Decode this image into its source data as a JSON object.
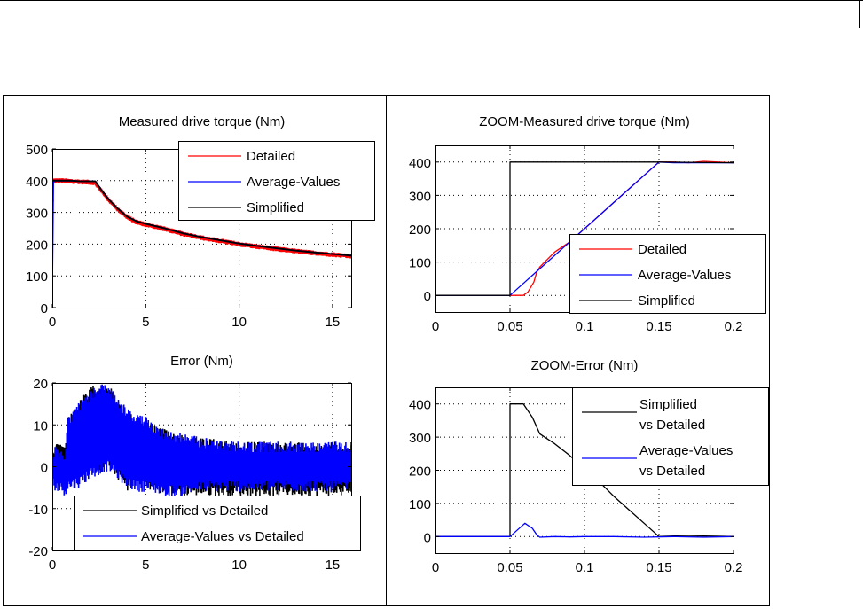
{
  "figure": {
    "colors": {
      "detailed": "#ff0000",
      "average": "#0000ff",
      "simplified": "#000000",
      "grid": "#000000",
      "background": "#ffffff"
    }
  },
  "chart_data": [
    {
      "type": "line",
      "title": "Measured drive torque (Nm)",
      "xlabel": "",
      "ylabel": "",
      "xlim": [
        0,
        16
      ],
      "ylim": [
        0,
        500
      ],
      "xticks": [
        0,
        5,
        10,
        15
      ],
      "yticks": [
        0,
        100,
        200,
        300,
        400,
        500
      ],
      "xtick_labels": [
        "0",
        "5",
        "10",
        "15"
      ],
      "ytick_labels": [
        "0",
        "100",
        "200",
        "300",
        "400",
        "500"
      ],
      "grid": true,
      "legend": {
        "position": "top-right",
        "entries": [
          "Detailed",
          "Average-Values",
          "Simplified"
        ]
      },
      "series": [
        {
          "name": "Detailed",
          "color": "#ff0000",
          "noisy": true,
          "x": [
            0,
            0.05,
            0.1,
            0.5,
            1,
            1.5,
            2,
            2.3,
            2.6,
            3,
            3.5,
            4,
            4.5,
            5,
            6,
            7,
            8,
            9,
            10,
            11,
            12,
            13,
            14,
            15,
            16
          ],
          "y": [
            90,
            400,
            400,
            400,
            398,
            396,
            395,
            393,
            370,
            340,
            310,
            285,
            270,
            262,
            248,
            232,
            220,
            210,
            200,
            192,
            185,
            178,
            172,
            167,
            162
          ]
        },
        {
          "name": "Average-Values",
          "color": "#0000ff",
          "noisy": false,
          "x": [
            0,
            0.05,
            0.1,
            0.5,
            1,
            1.5,
            2,
            2.3,
            2.6,
            3,
            3.5,
            4,
            4.5,
            5,
            6,
            7,
            8,
            9,
            10,
            11,
            12,
            13,
            14,
            15,
            16
          ],
          "y": [
            90,
            400,
            400,
            400,
            400,
            398,
            398,
            398,
            372,
            342,
            312,
            287,
            272,
            264,
            250,
            234,
            222,
            212,
            202,
            194,
            187,
            180,
            174,
            169,
            164
          ]
        },
        {
          "name": "Simplified",
          "color": "#000000",
          "noisy": false,
          "x": [
            0.05,
            0.1,
            0.5,
            1,
            1.5,
            2,
            2.3,
            2.6,
            3,
            3.5,
            4,
            4.5,
            5,
            6,
            7,
            8,
            9,
            10,
            11,
            12,
            13,
            14,
            15,
            16
          ],
          "y": [
            400,
            400,
            400,
            400,
            398,
            398,
            398,
            372,
            342,
            312,
            287,
            272,
            264,
            250,
            234,
            222,
            212,
            202,
            194,
            187,
            180,
            174,
            169,
            164
          ]
        }
      ]
    },
    {
      "type": "line",
      "title": "Error (Nm)",
      "xlabel": "",
      "ylabel": "",
      "xlim": [
        0,
        16
      ],
      "ylim": [
        -20,
        20
      ],
      "xticks": [
        0,
        5,
        10,
        15
      ],
      "yticks": [
        -20,
        -10,
        0,
        10,
        20
      ],
      "xtick_labels": [
        "0",
        "5",
        "10",
        "15"
      ],
      "ytick_labels": [
        "-20",
        "-10",
        "0",
        "10",
        "20"
      ],
      "grid": true,
      "legend": {
        "position": "bottom-right",
        "entries": [
          "Simplified vs Detailed",
          "Average-Values vs Detailed"
        ]
      },
      "series": [
        {
          "name": "Simplified vs Detailed",
          "color": "#000000",
          "kind": "band",
          "x": [
            0,
            0.2,
            0.7,
            0.8,
            1.5,
            2,
            2.5,
            3,
            3.5,
            4,
            4.5,
            5,
            6,
            7,
            8,
            10,
            12,
            14,
            16
          ],
          "upper": [
            4,
            5,
            4,
            12,
            16,
            19,
            20,
            20,
            16,
            13,
            12,
            11,
            9,
            8,
            7,
            6,
            6,
            6,
            6
          ],
          "lower": [
            -2,
            3,
            2,
            4,
            2,
            0,
            -1,
            0,
            -3,
            -6,
            -2,
            -5,
            -7,
            -7,
            -7,
            -7,
            -7,
            -7,
            -7
          ]
        },
        {
          "name": "Average-Values vs Detailed",
          "color": "#0000ff",
          "kind": "band",
          "x": [
            0,
            0.2,
            0.7,
            0.8,
            1.5,
            2,
            2.5,
            3,
            3.5,
            4,
            4.5,
            5,
            6,
            7,
            8,
            10,
            12,
            14,
            16
          ],
          "upper": [
            4,
            5,
            4,
            12,
            16,
            18,
            20,
            20,
            17,
            14,
            13,
            12,
            9,
            8,
            7,
            6,
            6,
            6,
            6
          ],
          "lower": [
            -5,
            -6,
            -7,
            -6,
            -5,
            -3,
            -2,
            -1,
            -3,
            -5,
            -6,
            -6,
            -7,
            -7,
            -6,
            -6,
            -6,
            -6,
            -6
          ]
        }
      ]
    },
    {
      "type": "line",
      "title": "ZOOM-Measured drive torque (Nm)",
      "xlabel": "",
      "ylabel": "",
      "xlim": [
        0,
        0.2
      ],
      "ylim": [
        -50,
        450
      ],
      "xticks": [
        0,
        0.05,
        0.1,
        0.15,
        0.2
      ],
      "yticks": [
        0,
        100,
        200,
        300,
        400
      ],
      "xtick_labels": [
        "0",
        "0.05",
        "0.1",
        "0.15",
        "0.2"
      ],
      "ytick_labels": [
        "0",
        "100",
        "200",
        "300",
        "400"
      ],
      "grid": true,
      "legend": {
        "position": "bottom-right",
        "entries": [
          "Detailed",
          "Average-Values",
          "Simplified"
        ]
      },
      "series": [
        {
          "name": "Detailed",
          "color": "#ff0000",
          "x": [
            0,
            0.05,
            0.052,
            0.059,
            0.062,
            0.066,
            0.068,
            0.07,
            0.08,
            0.09,
            0.1,
            0.11,
            0.12,
            0.13,
            0.14,
            0.15,
            0.16,
            0.17,
            0.18,
            0.2
          ],
          "y": [
            0,
            0,
            0,
            0,
            10,
            40,
            70,
            85,
            130,
            160,
            200,
            240,
            280,
            320,
            360,
            400,
            400,
            398,
            402,
            398
          ]
        },
        {
          "name": "Average-Values",
          "color": "#0000ff",
          "x": [
            0,
            0.05,
            0.055,
            0.06,
            0.065,
            0.07,
            0.08,
            0.09,
            0.1,
            0.11,
            0.12,
            0.13,
            0.14,
            0.15,
            0.16,
            0.18,
            0.2
          ],
          "y": [
            0,
            0,
            20,
            40,
            60,
            80,
            120,
            160,
            200,
            240,
            280,
            320,
            360,
            400,
            398,
            398,
            398
          ]
        },
        {
          "name": "Simplified",
          "color": "#000000",
          "x": [
            0,
            0.05,
            0.05,
            0.15,
            0.2
          ],
          "y": [
            0,
            0,
            400,
            400,
            398
          ]
        }
      ]
    },
    {
      "type": "line",
      "title": "ZOOM-Error (Nm)",
      "xlabel": "",
      "ylabel": "",
      "xlim": [
        0,
        0.2
      ],
      "ylim": [
        -50,
        450
      ],
      "xticks": [
        0,
        0.05,
        0.1,
        0.15,
        0.2
      ],
      "yticks": [
        0,
        100,
        200,
        300,
        400
      ],
      "xtick_labels": [
        "0",
        "0.05",
        "0.1",
        "0.15",
        "0.2"
      ],
      "ytick_labels": [
        "0",
        "100",
        "200",
        "300",
        "400"
      ],
      "grid": true,
      "legend": {
        "position": "top-right",
        "entries": [
          "Simplified\nvs Detailed",
          "Average-Values\nvs Detailed"
        ]
      },
      "series": [
        {
          "name": "Simplified vs Detailed",
          "color": "#000000",
          "x": [
            0,
            0.05,
            0.05,
            0.052,
            0.059,
            0.065,
            0.07,
            0.08,
            0.09,
            0.1,
            0.11,
            0.12,
            0.13,
            0.14,
            0.15,
            0.16,
            0.17,
            0.18,
            0.2
          ],
          "y": [
            0,
            0,
            400,
            400,
            400,
            360,
            310,
            280,
            245,
            205,
            165,
            120,
            80,
            40,
            0,
            2,
            1,
            2,
            0
          ]
        },
        {
          "name": "Average-Values vs Detailed",
          "color": "#0000ff",
          "x": [
            0,
            0.05,
            0.055,
            0.06,
            0.065,
            0.068,
            0.07,
            0.08,
            0.09,
            0.1,
            0.12,
            0.14,
            0.16,
            0.18,
            0.2
          ],
          "y": [
            0,
            0,
            20,
            40,
            25,
            5,
            -2,
            0,
            -1,
            0,
            0,
            -2,
            0,
            -2,
            0
          ]
        }
      ]
    }
  ]
}
